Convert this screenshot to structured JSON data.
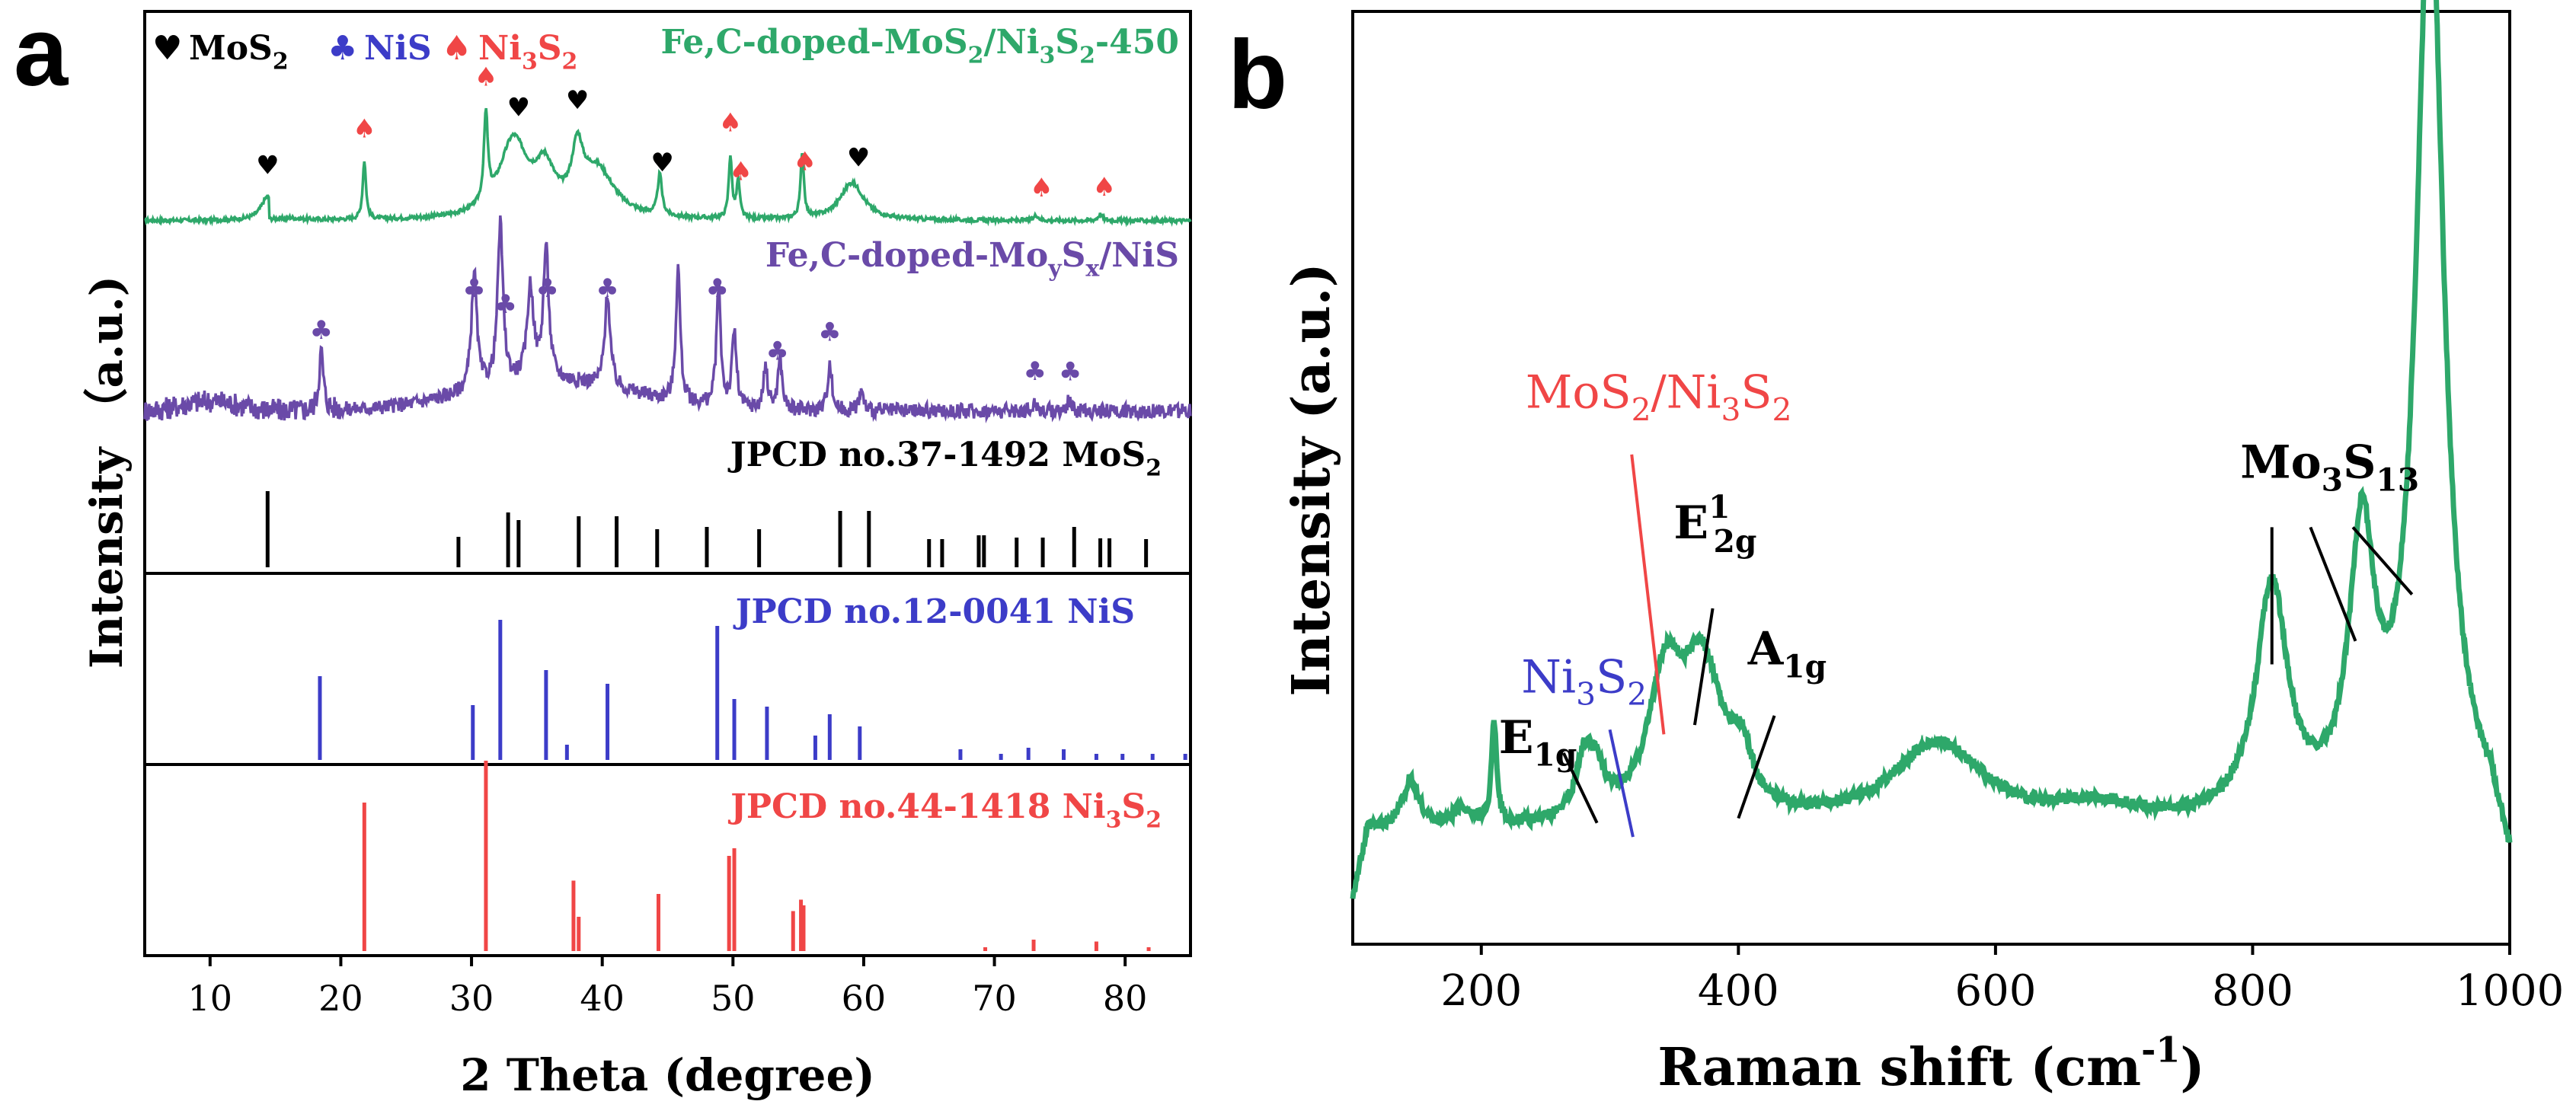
{
  "chart_data": [
    {
      "panel": "a",
      "type": "line",
      "xlabel": "2 Theta (degree)",
      "ylabel": "Intensity （a.u.)",
      "xlim": [
        5,
        85
      ],
      "xticks": [
        10,
        20,
        30,
        40,
        50,
        60,
        70,
        80
      ],
      "legend": {
        "entries": [
          {
            "symbol": "♥",
            "label": "MoS",
            "sub": "2",
            "color": "#000000"
          },
          {
            "symbol": "♣",
            "label": "NiS",
            "sub": "",
            "color": "#3c3cc8"
          },
          {
            "symbol": "♠",
            "label": "Ni",
            "sub": "3",
            "label2": "S",
            "sub2": "2",
            "color": "#f04646"
          }
        ]
      },
      "series": [
        {
          "name": "Fe,C-doped-MoS2/Ni3S2-450",
          "label_parts": [
            "Fe,C-doped-MoS",
            "2",
            "/Ni",
            "3",
            "S",
            "2",
            "-450"
          ],
          "color": "#2ea86a",
          "peaks": [
            [
              14.4,
              0.22,
              0.6
            ],
            [
              21.8,
              0.55,
              0.15
            ],
            [
              31.1,
              0.82,
              0.18
            ],
            [
              33.2,
              0.72,
              1.3
            ],
            [
              35.6,
              0.4,
              0.9
            ],
            [
              38.1,
              0.5,
              0.5
            ],
            [
              39.6,
              0.45,
              1.6
            ],
            [
              44.4,
              0.38,
              0.2
            ],
            [
              49.8,
              0.58,
              0.15
            ],
            [
              50.4,
              0.35,
              0.15
            ],
            [
              55.3,
              0.62,
              0.15
            ],
            [
              59.1,
              0.35,
              1.1
            ],
            [
              73.2,
              0.05,
              0.2
            ],
            [
              78.1,
              0.06,
              0.2
            ]
          ],
          "markers": [
            {
              "x": 14.4,
              "sym": "♥",
              "c": "#000000"
            },
            {
              "x": 21.8,
              "sym": "♠",
              "c": "#f04646"
            },
            {
              "x": 31.1,
              "sym": "♠",
              "c": "#f04646"
            },
            {
              "x": 33.6,
              "sym": "♥",
              "c": "#000000"
            },
            {
              "x": 38.1,
              "sym": "♥",
              "c": "#000000"
            },
            {
              "x": 44.6,
              "sym": "♥",
              "c": "#000000"
            },
            {
              "x": 49.8,
              "sym": "♠",
              "c": "#f04646"
            },
            {
              "x": 50.6,
              "sym": "♠",
              "c": "#f04646"
            },
            {
              "x": 55.5,
              "sym": "♠",
              "c": "#f04646"
            },
            {
              "x": 59.6,
              "sym": "♥",
              "c": "#000000"
            },
            {
              "x": 73.6,
              "sym": "♠",
              "c": "#f04646"
            },
            {
              "x": 78.4,
              "sym": "♠",
              "c": "#f04646"
            }
          ]
        },
        {
          "name": "Fe,C-doped-MoySx/NiS",
          "label_parts": [
            "Fe,C-doped-Mo",
            "y",
            "S",
            "x",
            "/NiS"
          ],
          "color": "#6a4aa8",
          "peaks": [
            [
              18.5,
              0.35,
              0.2
            ],
            [
              30.2,
              0.7,
              0.25
            ],
            [
              32.2,
              0.95,
              0.25
            ],
            [
              34.5,
              0.55,
              0.3
            ],
            [
              35.7,
              0.78,
              0.25
            ],
            [
              40.4,
              0.55,
              0.25
            ],
            [
              45.8,
              0.8,
              0.2
            ],
            [
              48.9,
              0.7,
              0.2
            ],
            [
              50.1,
              0.45,
              0.2
            ],
            [
              52.5,
              0.25,
              0.2
            ],
            [
              53.6,
              0.3,
              0.2
            ],
            [
              57.4,
              0.28,
              0.2
            ],
            [
              59.8,
              0.12,
              0.2
            ],
            [
              73.1,
              0.05,
              0.2
            ],
            [
              75.7,
              0.06,
              0.2
            ]
          ],
          "markers": [
            {
              "x": 18.5,
              "sym": "♣"
            },
            {
              "x": 30.2,
              "sym": "♣"
            },
            {
              "x": 32.6,
              "sym": "♣"
            },
            {
              "x": 35.8,
              "sym": "♣"
            },
            {
              "x": 40.4,
              "sym": "♣"
            },
            {
              "x": 48.8,
              "sym": "♣"
            },
            {
              "x": 53.4,
              "sym": "♣"
            },
            {
              "x": 57.4,
              "sym": "♣"
            },
            {
              "x": 73.1,
              "sym": "♣"
            },
            {
              "x": 75.8,
              "sym": "♣"
            }
          ]
        }
      ],
      "references": [
        {
          "name": "JPCD no.37-1492 MoS2",
          "label_parts": [
            "JPCD no.37-1492 MoS",
            "2"
          ],
          "color": "#000000",
          "lines": [
            [
              14.4,
              1.0
            ],
            [
              29.0,
              0.4
            ],
            [
              32.8,
              0.72
            ],
            [
              33.6,
              0.62
            ],
            [
              38.2,
              0.67
            ],
            [
              41.1,
              0.67
            ],
            [
              44.2,
              0.5
            ],
            [
              48.0,
              0.53
            ],
            [
              52.0,
              0.5
            ],
            [
              58.2,
              0.74
            ],
            [
              60.4,
              0.74
            ],
            [
              65.0,
              0.37
            ],
            [
              66.0,
              0.37
            ],
            [
              68.8,
              0.42
            ],
            [
              69.2,
              0.42
            ],
            [
              71.7,
              0.39
            ],
            [
              73.7,
              0.39
            ],
            [
              76.1,
              0.53
            ],
            [
              78.1,
              0.38
            ],
            [
              78.8,
              0.38
            ],
            [
              81.6,
              0.37
            ]
          ]
        },
        {
          "name": "JPCD no.12-0041 NiS",
          "label_parts": [
            "JPCD no.12-0041 NiS"
          ],
          "color": "#3c3cc8",
          "lines": [
            [
              18.4,
              0.55
            ],
            [
              30.1,
              0.36
            ],
            [
              32.2,
              0.92
            ],
            [
              35.7,
              0.59
            ],
            [
              37.3,
              0.1
            ],
            [
              40.4,
              0.5
            ],
            [
              48.8,
              0.88
            ],
            [
              50.1,
              0.4
            ],
            [
              52.6,
              0.35
            ],
            [
              56.3,
              0.16
            ],
            [
              57.4,
              0.3
            ],
            [
              59.7,
              0.22
            ],
            [
              67.4,
              0.07
            ],
            [
              70.5,
              0.04
            ],
            [
              72.6,
              0.08
            ],
            [
              75.3,
              0.07
            ],
            [
              77.8,
              0.04
            ],
            [
              79.8,
              0.04
            ],
            [
              82.1,
              0.04
            ],
            [
              84.6,
              0.04
            ]
          ]
        },
        {
          "name": "JPCD no.44-1418 Ni3S2",
          "label_parts": [
            "JPCD no.44-1418 Ni",
            "3",
            "S",
            "2"
          ],
          "color": "#f04646",
          "lines": [
            [
              21.8,
              0.78
            ],
            [
              31.1,
              1.0
            ],
            [
              37.8,
              0.37
            ],
            [
              38.2,
              0.18
            ],
            [
              44.3,
              0.3
            ],
            [
              49.7,
              0.5
            ],
            [
              50.1,
              0.54
            ],
            [
              54.6,
              0.21
            ],
            [
              55.2,
              0.27
            ],
            [
              55.4,
              0.24
            ],
            [
              69.3,
              0.02
            ],
            [
              73.0,
              0.06
            ],
            [
              77.8,
              0.05
            ],
            [
              81.8,
              0.02
            ]
          ]
        }
      ]
    },
    {
      "panel": "b",
      "type": "line",
      "xlabel": "Raman shift (cm",
      "xlabel_sup": "-1",
      "xlabel_end": ")",
      "ylabel": "Intensity (a.u.)",
      "xlim": [
        100,
        1000
      ],
      "ylim": [
        0,
        1
      ],
      "xticks": [
        200,
        400,
        600,
        800,
        1000
      ],
      "color": "#2ea86a",
      "baseline": 0.12,
      "peaks": [
        [
          145,
          0.05,
          8
        ],
        [
          185,
          0.02,
          8
        ],
        [
          210,
          0.11,
          2.5
        ],
        [
          280,
          0.06,
          8
        ],
        [
          290,
          0.04,
          8
        ],
        [
          343,
          0.14,
          16
        ],
        [
          372,
          0.16,
          20
        ],
        [
          402,
          0.05,
          10
        ],
        [
          555,
          0.09,
          45
        ],
        [
          680,
          0.02,
          40
        ],
        [
          815,
          0.25,
          15
        ],
        [
          885,
          0.29,
          12
        ],
        [
          938,
          1.0,
          13
        ]
      ],
      "annotations": [
        {
          "parts": [
            "E",
            "1g"
          ],
          "color": "#000000",
          "tx": 244,
          "ty": 0.205,
          "line": [
            [
              264,
              0.205
            ],
            [
              290,
              0.13
            ]
          ]
        },
        {
          "parts": [
            "Ni",
            "3",
            "S",
            "2"
          ],
          "color": "#3c3cc8",
          "tx": 280,
          "ty": 0.27,
          "line": [
            [
              300,
              0.23
            ],
            [
              318,
              0.115
            ]
          ]
        },
        {
          "parts": [
            "MoS",
            "2",
            "/Ni",
            "3",
            "S",
            "2"
          ],
          "color": "#f04646",
          "tx": 338,
          "ty": 0.575,
          "line": [
            [
              317,
              0.525
            ],
            [
              342,
              0.225
            ]
          ]
        },
        {
          "parts": [
            "E",
            "1",
            "2g"
          ],
          "color": "#000000",
          "tx": 382,
          "ty": 0.435,
          "line": [
            [
              380,
              0.36
            ],
            [
              366,
              0.235
            ]
          ]
        },
        {
          "parts": [
            "A",
            "1g"
          ],
          "color": "#000000",
          "tx": 438,
          "ty": 0.3,
          "line": [
            [
              428,
              0.245
            ],
            [
              400,
              0.135
            ]
          ]
        },
        {
          "parts": [
            "Mo",
            "3",
            "S",
            "13"
          ],
          "color": "#000000",
          "tx": 860,
          "ty": 0.5,
          "line": [
            [
              815,
              0.447
            ],
            [
              815,
              0.3
            ]
          ]
        }
      ],
      "extra_lines": [
        [
          [
            845,
            0.447
          ],
          [
            880,
            0.325
          ]
        ],
        [
          [
            878,
            0.447
          ],
          [
            924,
            0.375
          ]
        ]
      ]
    }
  ],
  "panels": {
    "a": "a",
    "b": "b"
  }
}
